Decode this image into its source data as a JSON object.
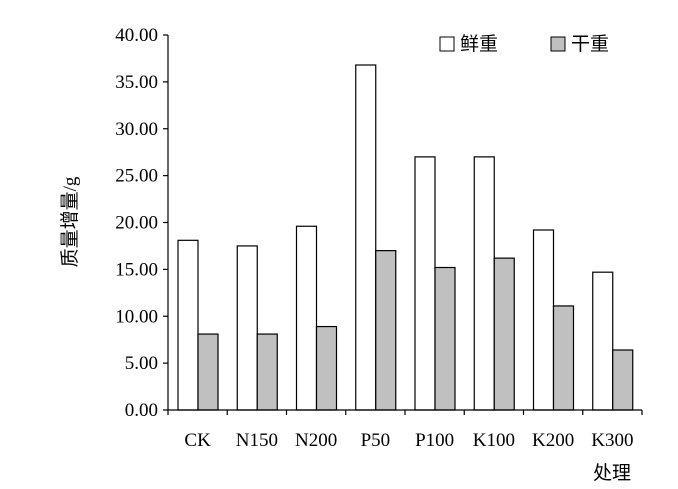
{
  "chart_data": {
    "type": "bar",
    "categories": [
      "CK",
      "N150",
      "N200",
      "P50",
      "P100",
      "K100",
      "K200",
      "K300"
    ],
    "series": [
      {
        "name": "鲜重",
        "color": "#ffffff",
        "values": [
          18.1,
          17.5,
          19.6,
          36.8,
          27.0,
          27.0,
          19.2,
          14.7
        ]
      },
      {
        "name": "干重",
        "color": "#c0c0c0",
        "values": [
          8.1,
          8.1,
          8.9,
          17.0,
          15.2,
          16.2,
          11.1,
          6.4
        ]
      }
    ],
    "ylabel": "质量增量/g",
    "xlabel": "处理",
    "ylim": [
      0,
      40
    ],
    "yticks": [
      "0.00",
      "5.00",
      "10.00",
      "15.00",
      "20.00",
      "25.00",
      "30.00",
      "35.00",
      "40.00"
    ],
    "legend_position": "top-right",
    "grid": false
  }
}
